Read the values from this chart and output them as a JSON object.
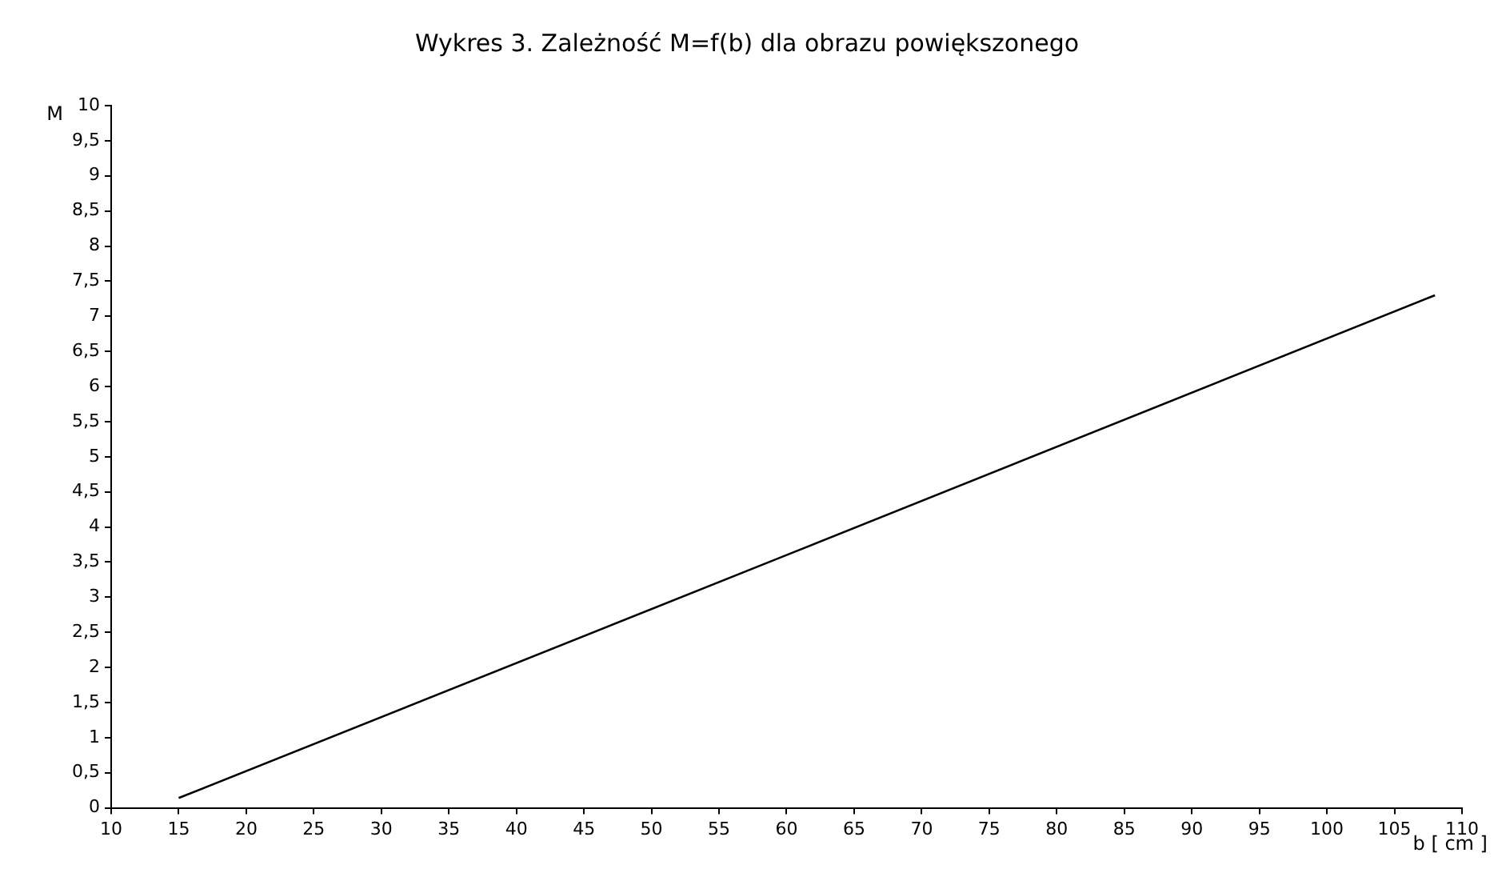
{
  "chart_data": {
    "type": "line",
    "title": "Wykres 3. Zależność M=f(b) dla obrazu powiększonego",
    "xlabel": "b [ cm ]",
    "ylabel": "M",
    "x": [
      15,
      60,
      108
    ],
    "series": [
      {
        "color": "#000000",
        "values": [
          0.14,
          3.6,
          7.3
        ]
      }
    ],
    "xlim": [
      10,
      110
    ],
    "xticks": [
      10,
      15,
      20,
      25,
      30,
      35,
      40,
      45,
      50,
      55,
      60,
      65,
      70,
      75,
      80,
      85,
      90,
      95,
      100,
      105,
      110
    ],
    "ylim": [
      0,
      10
    ],
    "yticks": [
      0,
      {
        "value": 0.5,
        "label": "0,5"
      },
      1,
      {
        "value": 1.5,
        "label": "1,5"
      },
      2,
      {
        "value": 2.5,
        "label": "2,5"
      },
      3,
      {
        "value": 3.5,
        "label": "3,5"
      },
      4,
      {
        "value": 4.5,
        "label": "4,5"
      },
      5,
      {
        "value": 5.5,
        "label": "5,5"
      },
      6,
      {
        "value": 6.5,
        "label": "6,5"
      },
      7,
      {
        "value": 7.5,
        "label": "7,5"
      },
      8,
      {
        "value": 8.5,
        "label": "8,5"
      },
      9,
      {
        "value": 9.5,
        "label": "9,5"
      },
      10
    ],
    "grid": false,
    "legend": false,
    "marker": "none",
    "line_style": "solid"
  }
}
